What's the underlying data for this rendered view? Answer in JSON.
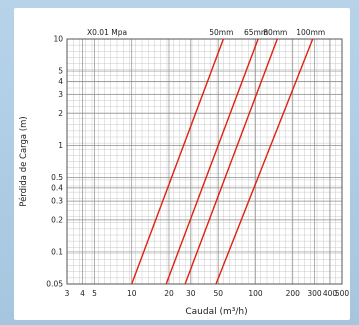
{
  "chart_data": {
    "type": "line",
    "xlabel": "Caudal (m³/h)",
    "ylabel": "Pérdida de Carga (m)",
    "unit_note": "X0.01 Mpa",
    "x_scale": "log",
    "y_scale": "log",
    "xlim": [
      3,
      500
    ],
    "ylim": [
      0.05,
      10
    ],
    "grid": true,
    "x_ticks": [
      {
        "value": 3,
        "label": "3"
      },
      {
        "value": 4,
        "label": "4"
      },
      {
        "value": 5,
        "label": "5"
      },
      {
        "value": 10,
        "label": "10"
      },
      {
        "value": 20,
        "label": "20"
      },
      {
        "value": 30,
        "label": "30"
      },
      {
        "value": 50,
        "label": "50"
      },
      {
        "value": 100,
        "label": "100"
      },
      {
        "value": 200,
        "label": "200"
      },
      {
        "value": 300,
        "label": "300"
      },
      {
        "value": 400,
        "label": "400"
      },
      {
        "value": 500,
        "label": "500"
      }
    ],
    "y_ticks": [
      {
        "value": 0.05,
        "label": "0.05"
      },
      {
        "value": 0.1,
        "label": "0.1"
      },
      {
        "value": 0.2,
        "label": "0.2"
      },
      {
        "value": 0.3,
        "label": "0.3"
      },
      {
        "value": 0.4,
        "label": "0.4"
      },
      {
        "value": 0.5,
        "label": "0.5"
      },
      {
        "value": 1,
        "label": "1"
      },
      {
        "value": 2,
        "label": "2"
      },
      {
        "value": 3,
        "label": "3"
      },
      {
        "value": 4,
        "label": "4"
      },
      {
        "value": 5,
        "label": "5"
      },
      {
        "value": 10,
        "label": "10"
      }
    ],
    "series": [
      {
        "name": "50mm",
        "points": [
          [
            10,
            0.05
          ],
          [
            55,
            10
          ]
        ]
      },
      {
        "name": "65mm",
        "points": [
          [
            19,
            0.05
          ],
          [
            105,
            10
          ]
        ]
      },
      {
        "name": "80mm",
        "points": [
          [
            27,
            0.05
          ],
          [
            150,
            10
          ]
        ]
      },
      {
        "name": "100mm",
        "points": [
          [
            48,
            0.05
          ],
          [
            290,
            10
          ]
        ]
      }
    ],
    "line_color": "#e02010"
  }
}
